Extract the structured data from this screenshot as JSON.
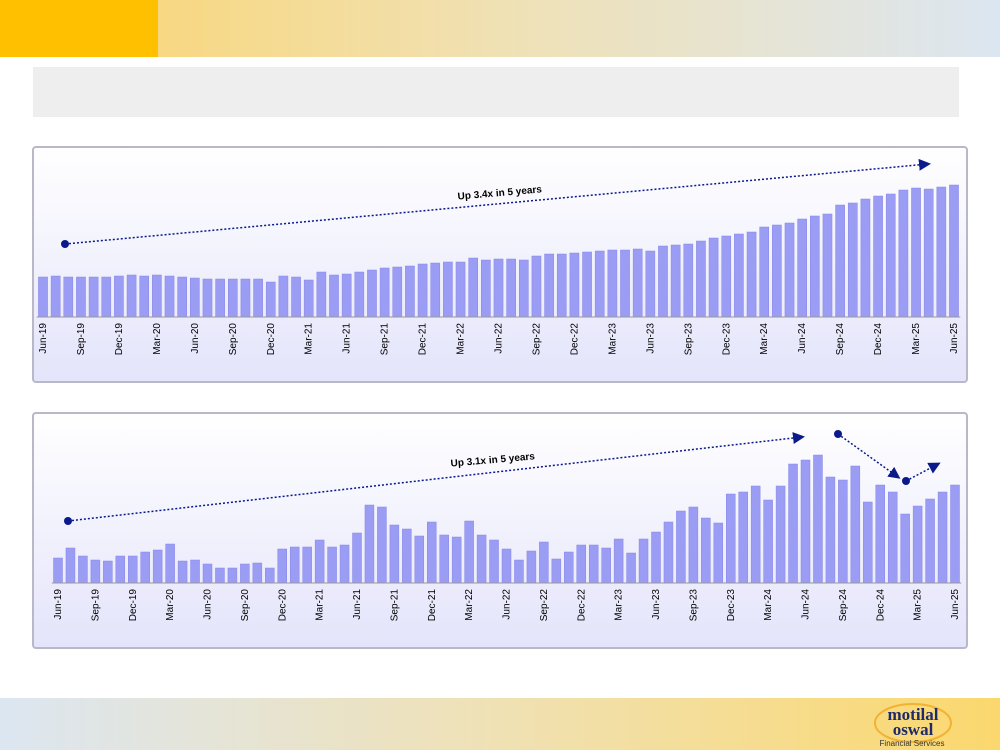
{
  "chart_data": [
    {
      "type": "bar",
      "annotation": "Up 3.4x in 5 years",
      "color": "#9b9cf4",
      "ylim": [
        0,
        150
      ],
      "categories": [
        "Jun-19",
        null,
        null,
        "Sep-19",
        null,
        null,
        "Dec-19",
        null,
        null,
        "Mar-20",
        null,
        null,
        "Jun-20",
        null,
        null,
        "Sep-20",
        null,
        null,
        "Dec-20",
        null,
        null,
        "Mar-21",
        null,
        null,
        "Jun-21",
        null,
        null,
        "Sep-21",
        null,
        null,
        "Dec-21",
        null,
        null,
        "Mar-22",
        null,
        null,
        "Jun-22",
        null,
        null,
        "Sep-22",
        null,
        null,
        "Dec-22",
        null,
        null,
        "Mar-23",
        null,
        null,
        "Jun-23",
        null,
        null,
        "Sep-23",
        null,
        null,
        "Dec-23",
        null,
        null,
        "Mar-24",
        null,
        null,
        "Jun-24",
        null,
        null,
        "Sep-24",
        null,
        null,
        "Dec-24",
        null,
        null,
        "Mar-25",
        null,
        null,
        "Jun-25"
      ],
      "values": [
        40,
        41,
        40,
        40,
        40,
        40,
        41,
        42,
        41,
        42,
        41,
        40,
        39,
        38,
        38,
        38,
        38,
        38,
        35,
        41,
        40,
        37,
        45,
        42,
        43,
        45,
        47,
        49,
        50,
        51,
        53,
        54,
        55,
        55,
        59,
        57,
        58,
        58,
        57,
        61,
        63,
        63,
        64,
        65,
        66,
        67,
        67,
        68,
        66,
        71,
        72,
        73,
        76,
        79,
        81,
        83,
        85,
        90,
        92,
        94,
        98,
        101,
        103,
        112,
        114,
        118,
        121,
        123,
        127,
        129,
        128,
        130,
        132
      ]
    },
    {
      "type": "bar",
      "annotation": "Up 3.1x in 5 years",
      "color": "#9b9cf4",
      "ylim": [
        0,
        140
      ],
      "categories": [
        "Jun-19",
        null,
        null,
        "Sep-19",
        null,
        null,
        "Dec-19",
        null,
        null,
        "Mar-20",
        null,
        null,
        "Jun-20",
        null,
        null,
        "Sep-20",
        null,
        null,
        "Dec-20",
        null,
        null,
        "Mar-21",
        null,
        null,
        "Jun-21",
        null,
        null,
        "Sep-21",
        null,
        null,
        "Dec-21",
        null,
        null,
        "Mar-22",
        null,
        null,
        "Jun-22",
        null,
        null,
        "Sep-22",
        null,
        null,
        "Dec-22",
        null,
        null,
        "Mar-23",
        null,
        null,
        "Jun-23",
        null,
        null,
        "Sep-23",
        null,
        null,
        "Dec-23",
        null,
        null,
        "Mar-24",
        null,
        null,
        "Jun-24",
        null,
        null,
        "Sep-24",
        null,
        null,
        "Dec-24",
        null,
        null,
        "Mar-25",
        null,
        null,
        "Jun-25"
      ],
      "values": [
        25,
        35,
        27,
        23,
        22,
        27,
        27,
        31,
        33,
        39,
        22,
        23,
        19,
        15,
        15,
        19,
        20,
        15,
        34,
        36,
        36,
        43,
        36,
        38,
        50,
        78,
        76,
        58,
        54,
        47,
        61,
        48,
        46,
        62,
        48,
        43,
        34,
        23,
        32,
        41,
        24,
        31,
        38,
        38,
        35,
        44,
        30,
        44,
        51,
        61,
        72,
        76,
        65,
        60,
        89,
        91,
        97,
        83,
        97,
        119,
        123,
        128,
        106,
        103,
        117,
        81,
        98,
        91,
        69,
        77,
        84,
        91,
        98
      ]
    }
  ],
  "brand": {
    "line1": "motilal",
    "line2": "oswal",
    "tagline": "Financial Services"
  }
}
